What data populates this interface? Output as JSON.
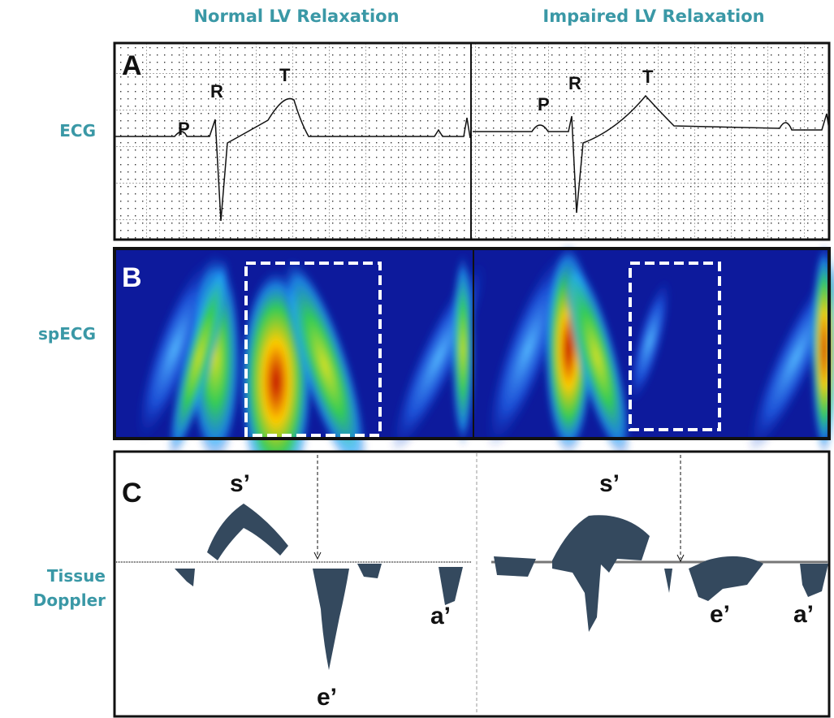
{
  "columns": [
    "Normal LV Relaxation",
    "Impaired LV Relaxation"
  ],
  "rows": [
    "ECG",
    "spECG",
    "Tissue Doppler"
  ],
  "panels": [
    {
      "letter": "A",
      "labels": [
        [
          "P",
          "R",
          "T"
        ],
        [
          "P",
          "R",
          "T"
        ]
      ]
    },
    {
      "letter": "B"
    },
    {
      "letter": "C",
      "labels": [
        [
          "s’",
          "e’",
          "a’"
        ],
        [
          "s’",
          "e’",
          "a’"
        ]
      ]
    }
  ]
}
